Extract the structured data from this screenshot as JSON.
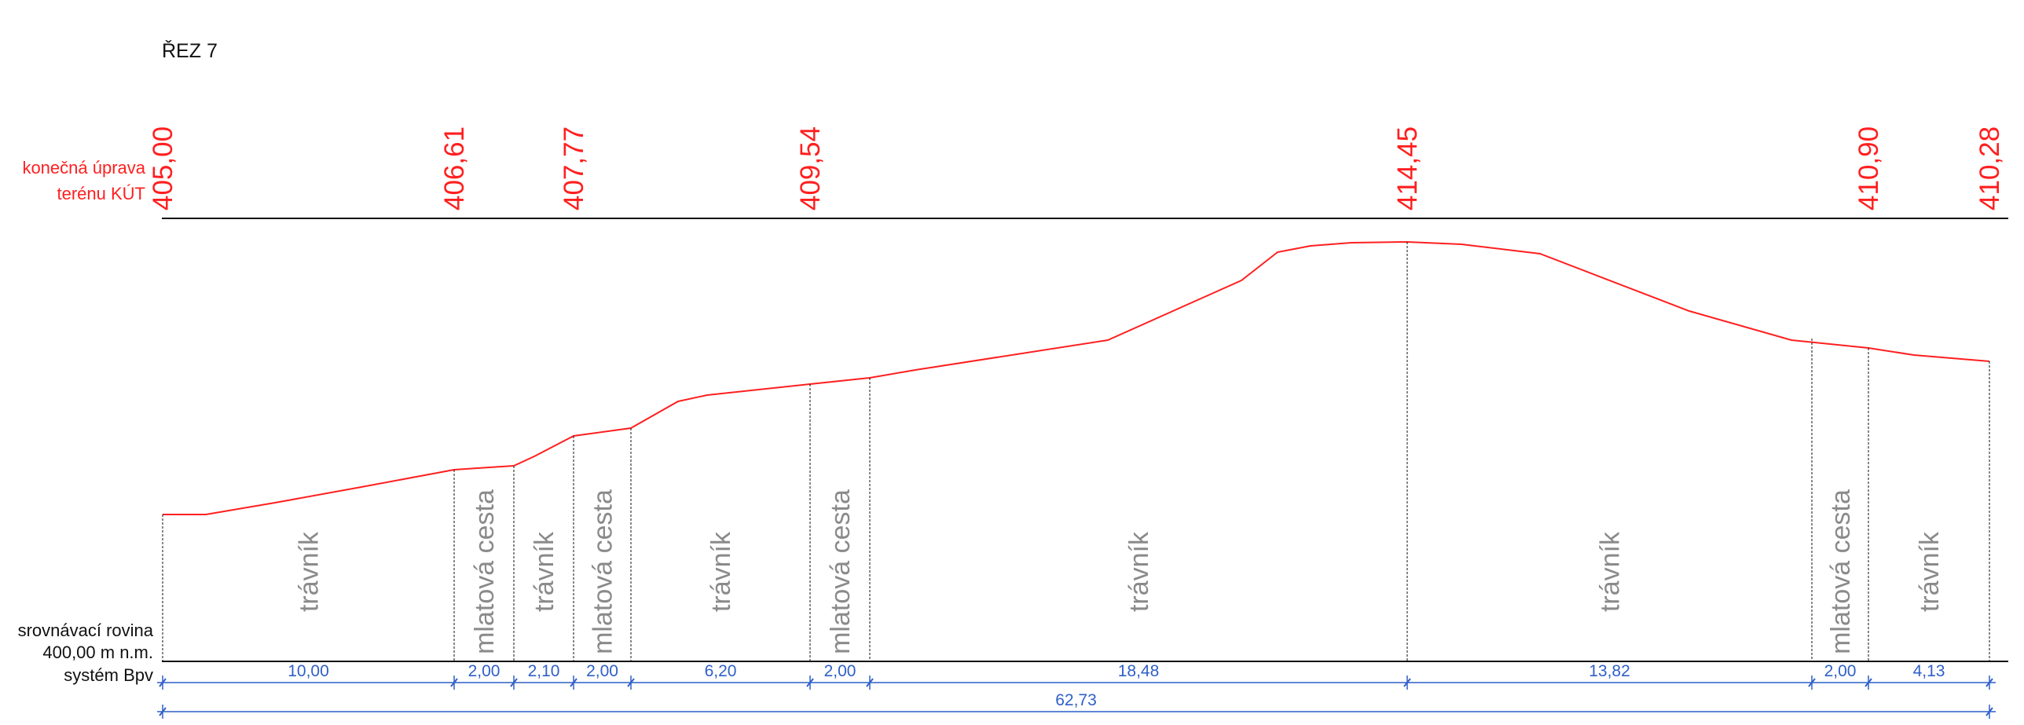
{
  "title": "ŘEZ 7",
  "legend": {
    "terrain_line1": "konečná úprava",
    "terrain_line2": "terénu KÚT",
    "datum_line1": "srovnávací rovina",
    "datum_line2": "400,00 m n.m.",
    "datum_line3": "systém Bpv"
  },
  "colors": {
    "terrain": "#ff1f1f",
    "dimension": "#2f5fc8",
    "surface_label": "#8a8a8a",
    "line": "#111111"
  },
  "elevations": [
    "405,00",
    "406,61",
    "407,77",
    "409,54",
    "414,45",
    "410,90",
    "410,28"
  ],
  "surfaces": [
    "trávník",
    "mlatová cesta",
    "trávník",
    "mlatová cesta",
    "trávník",
    "mlatová cesta",
    "trávník",
    "trávník",
    "mlatová cesta",
    "trávník"
  ],
  "segment_lengths": [
    "10,00",
    "2,00",
    "2,10",
    "2,00",
    "6,20",
    "2,00",
    "18,48",
    "13,82",
    "2,00",
    "4,13"
  ],
  "total_length": "62,73"
}
